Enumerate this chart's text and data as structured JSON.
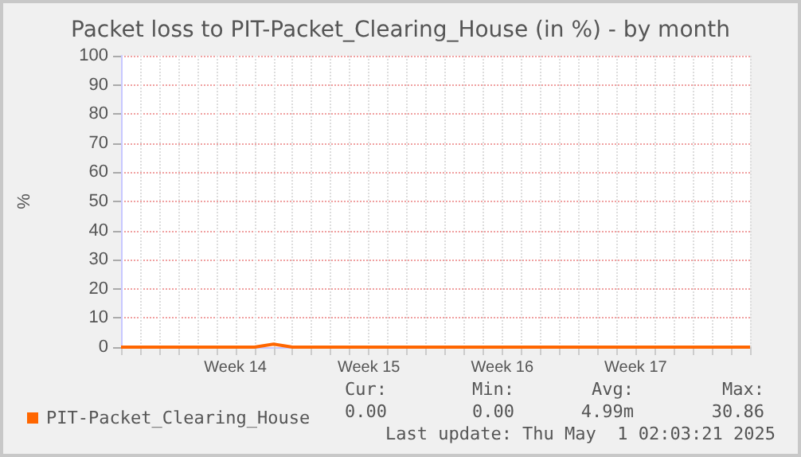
{
  "chart_data": {
    "type": "line",
    "title": "Packet loss to PIT-Packet_Clearing_House (in %) - by month",
    "ylabel": "%",
    "categories": [
      null,
      null,
      null,
      null,
      null,
      null,
      "Week 14",
      null,
      null,
      null,
      null,
      null,
      null,
      "Week 15",
      null,
      null,
      null,
      null,
      null,
      null,
      "Week 16",
      null,
      null,
      null,
      null,
      null,
      null,
      "Week 17",
      null,
      null,
      null,
      null,
      null,
      null
    ],
    "series": [
      {
        "name": "PIT-Packet_Clearing_House",
        "color": "#ff6600",
        "values": [
          0,
          0,
          0,
          0,
          0,
          0,
          0,
          0,
          1,
          0,
          0,
          0,
          0,
          0,
          0,
          0,
          0,
          0,
          0,
          0,
          0,
          0,
          0,
          0,
          0,
          0,
          0,
          0,
          0,
          0,
          0,
          0,
          0,
          0
        ]
      }
    ],
    "ylim": [
      0,
      100
    ],
    "yticks": [
      0,
      10,
      20,
      30,
      40,
      50,
      60,
      70,
      80,
      90,
      100
    ],
    "grid": true,
    "legend": "bottom left",
    "marker": "none",
    "line_style": "solid",
    "annotations": [
      "Cur:",
      "Min:",
      "Avg:",
      "Max:",
      "0.00",
      "0.00",
      "4.99m",
      "30.86",
      "Last update: Thu May  1 02:03:21 2025"
    ]
  }
}
